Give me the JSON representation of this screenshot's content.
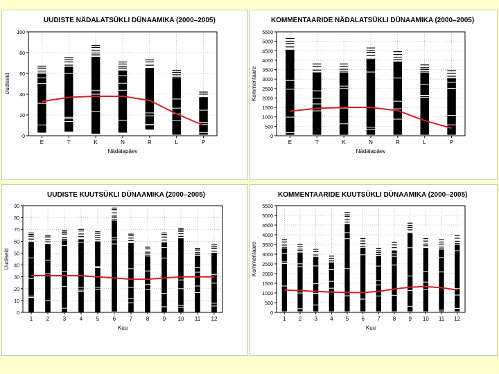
{
  "colors": {
    "background": "#ffffcc",
    "panel": "#ffffff",
    "trend": "#d42020",
    "bars": "#000000",
    "grid": "#9a9a9a"
  },
  "chart_data": [
    {
      "type": "scatter",
      "title": "UUDISTE NÄDALATSÜKLI DÜNAAMIKA (2000–2005)",
      "xlabel": "Nädalapäev",
      "ylabel": "Uudiseid",
      "categories": [
        "E",
        "T",
        "K",
        "N",
        "R",
        "L",
        "P"
      ],
      "ylim": [
        0,
        100
      ],
      "yticks": [
        0,
        20,
        40,
        60,
        80,
        100
      ],
      "grid": "dotted",
      "ranges": [
        [
          3,
          67
        ],
        [
          4,
          75
        ],
        [
          2,
          87
        ],
        [
          3,
          71
        ],
        [
          6,
          73
        ],
        [
          1,
          63
        ],
        [
          1,
          42
        ]
      ],
      "trend": [
        33,
        37,
        38,
        38,
        34,
        21,
        10
      ],
      "legend": "none"
    },
    {
      "type": "scatter",
      "title": "KOMMENTAARIDE NÄDALATSÜKLI DÜNAAMIKA (2000–2005)",
      "xlabel": "Nädalapäev",
      "ylabel": "Kommentaare",
      "categories": [
        "E",
        "T",
        "K",
        "N",
        "R",
        "L",
        "P"
      ],
      "ylim": [
        0,
        5500
      ],
      "yticks": [
        0,
        500,
        1000,
        1500,
        2000,
        2500,
        3000,
        3500,
        4000,
        4500,
        5000,
        5500
      ],
      "grid": "dotted",
      "ranges": [
        [
          50,
          5150
        ],
        [
          50,
          3800
        ],
        [
          50,
          3800
        ],
        [
          50,
          4650
        ],
        [
          50,
          4450
        ],
        [
          50,
          3750
        ],
        [
          50,
          3450
        ]
      ],
      "trend": [
        1300,
        1450,
        1500,
        1500,
        1330,
        800,
        400
      ],
      "legend": "none"
    },
    {
      "type": "scatter",
      "title": "UUDISTE KUUTSÜKLI DÜNAAMIKA (2000–2005)",
      "xlabel": "Kuu",
      "ylabel": "Uudiseid",
      "categories": [
        "1",
        "2",
        "3",
        "4",
        "5",
        "6",
        "7",
        "8",
        "9",
        "10",
        "11",
        "12"
      ],
      "ylim": [
        0,
        90
      ],
      "yticks": [
        0,
        10,
        20,
        30,
        40,
        50,
        60,
        70,
        80,
        90
      ],
      "grid": "dotted",
      "ranges": [
        [
          0,
          67
        ],
        [
          0,
          65
        ],
        [
          0,
          69
        ],
        [
          0,
          70
        ],
        [
          0,
          68
        ],
        [
          0,
          88
        ],
        [
          0,
          66
        ],
        [
          0,
          55
        ],
        [
          0,
          67
        ],
        [
          0,
          71
        ],
        [
          0,
          54
        ],
        [
          0,
          57
        ]
      ],
      "trend": [
        31,
        31,
        31,
        31,
        30,
        29,
        28,
        28,
        29,
        30,
        30,
        30
      ],
      "legend": "none"
    },
    {
      "type": "scatter",
      "title": "KOMMENTAARIDE KUUTSÜKLI DÜNAAMIKA (2000–2005)",
      "xlabel": "Kuu",
      "ylabel": "Kommentaare",
      "categories": [
        "1",
        "2",
        "3",
        "4",
        "5",
        "6",
        "7",
        "8",
        "9",
        "10",
        "11",
        "12"
      ],
      "ylim": [
        0,
        5500
      ],
      "yticks": [
        0,
        500,
        1000,
        1500,
        2000,
        2500,
        3000,
        3500,
        4000,
        4500,
        5000,
        5500
      ],
      "grid": "dotted",
      "ranges": [
        [
          50,
          3750
        ],
        [
          50,
          3500
        ],
        [
          50,
          3250
        ],
        [
          50,
          2900
        ],
        [
          50,
          5150
        ],
        [
          50,
          3800
        ],
        [
          50,
          3300
        ],
        [
          50,
          3600
        ],
        [
          50,
          4600
        ],
        [
          50,
          3800
        ],
        [
          50,
          3750
        ],
        [
          50,
          3950
        ]
      ],
      "trend": [
        1150,
        1120,
        1080,
        1050,
        1020,
        1020,
        1080,
        1200,
        1300,
        1330,
        1270,
        1150
      ],
      "legend": "none"
    }
  ]
}
